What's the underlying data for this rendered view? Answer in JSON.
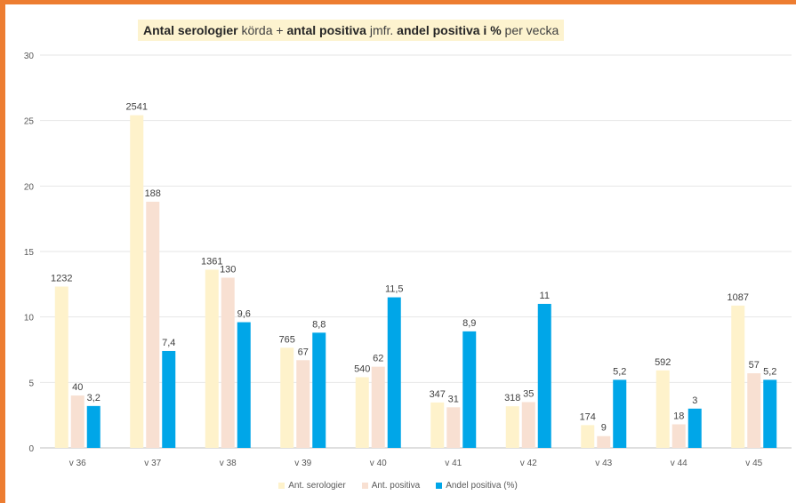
{
  "chart_data": {
    "type": "bar",
    "title_parts": [
      {
        "text": "Antal serologier",
        "bold": true
      },
      {
        "text": " körda + ",
        "bold": false
      },
      {
        "text": "antal positiva",
        "bold": true
      },
      {
        "text": "  jmfr. ",
        "bold": false
      },
      {
        "text": "andel positiva i %",
        "bold": true
      },
      {
        "text": " per vecka",
        "bold": false
      }
    ],
    "categories": [
      "v 36",
      "v 37",
      "v 38",
      "v 39",
      "v 40",
      "v 41",
      "v 42",
      "v 43",
      "v 44",
      "v 45"
    ],
    "ylim": [
      0,
      30
    ],
    "yticks": [
      "0",
      "5",
      "10",
      "15",
      "20",
      "25",
      "30"
    ],
    "grid": true,
    "legend_position": "bottom",
    "series": [
      {
        "name": "Ant. serologier",
        "color": "#fef2cb",
        "values": [
          12.32,
          25.41,
          13.61,
          7.65,
          5.4,
          3.47,
          3.18,
          1.74,
          5.92,
          10.87
        ],
        "labels": [
          "1232",
          "2541",
          "1361",
          "765",
          "540",
          "347",
          "318",
          "174",
          "592",
          "1087"
        ]
      },
      {
        "name": "Ant. positiva",
        "color": "#f8e0d2",
        "values": [
          4.0,
          18.8,
          13.0,
          6.7,
          6.2,
          3.1,
          3.5,
          0.9,
          1.8,
          5.7
        ],
        "labels": [
          "40",
          "188",
          "130",
          "67",
          "62",
          "31",
          "35",
          "9",
          "18",
          "57"
        ]
      },
      {
        "name": "Andel positiva (%)",
        "color": "#00a6e8",
        "values": [
          3.2,
          7.4,
          9.6,
          8.8,
          11.5,
          8.9,
          11,
          5.2,
          3,
          5.2
        ],
        "labels": [
          "3,2",
          "7,4",
          "9,6",
          "8,8",
          "11,5",
          "8,9",
          "11",
          "5,2",
          "3",
          "5,2"
        ]
      }
    ]
  }
}
